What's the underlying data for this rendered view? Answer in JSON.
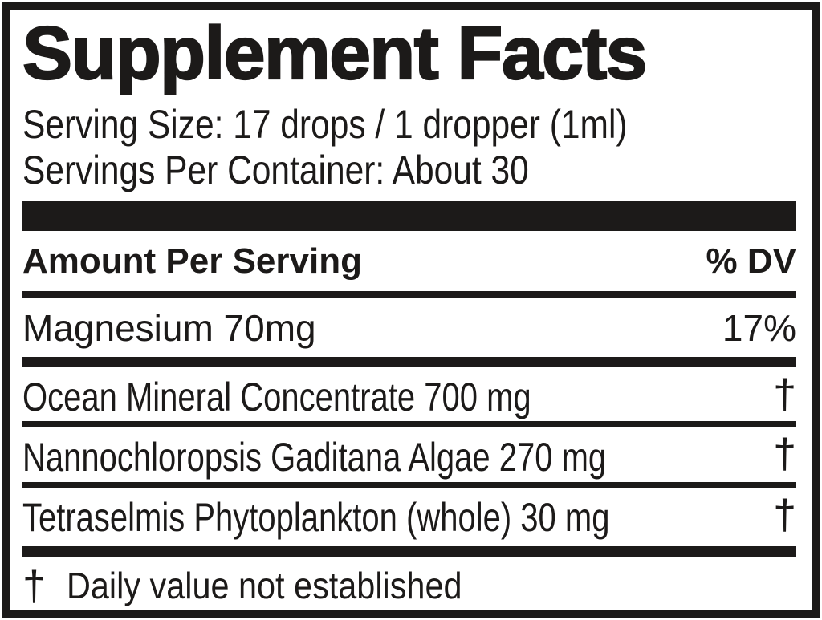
{
  "label": {
    "title": "Supplement Facts",
    "serving_size": "Serving Size: 17 drops / 1 dropper (1ml)",
    "servings_per_container": "Servings Per Container: About 30",
    "columns": {
      "amount": "Amount Per Serving",
      "dv": "% DV"
    },
    "rows": [
      {
        "name": "Magnesium 70mg",
        "dv": "17%"
      },
      {
        "name": "Ocean Mineral Concentrate 700 mg",
        "dv": "†"
      },
      {
        "name": "Nannochloropsis Gaditana Algae 270 mg",
        "dv": "†"
      },
      {
        "name": "Tetraselmis Phytoplankton (whole) 30 mg",
        "dv": "†"
      }
    ],
    "footnote": {
      "symbol": "†",
      "text": "Daily value not established"
    },
    "colors": {
      "ink": "#1c1a19",
      "background": "#ffffff"
    }
  }
}
